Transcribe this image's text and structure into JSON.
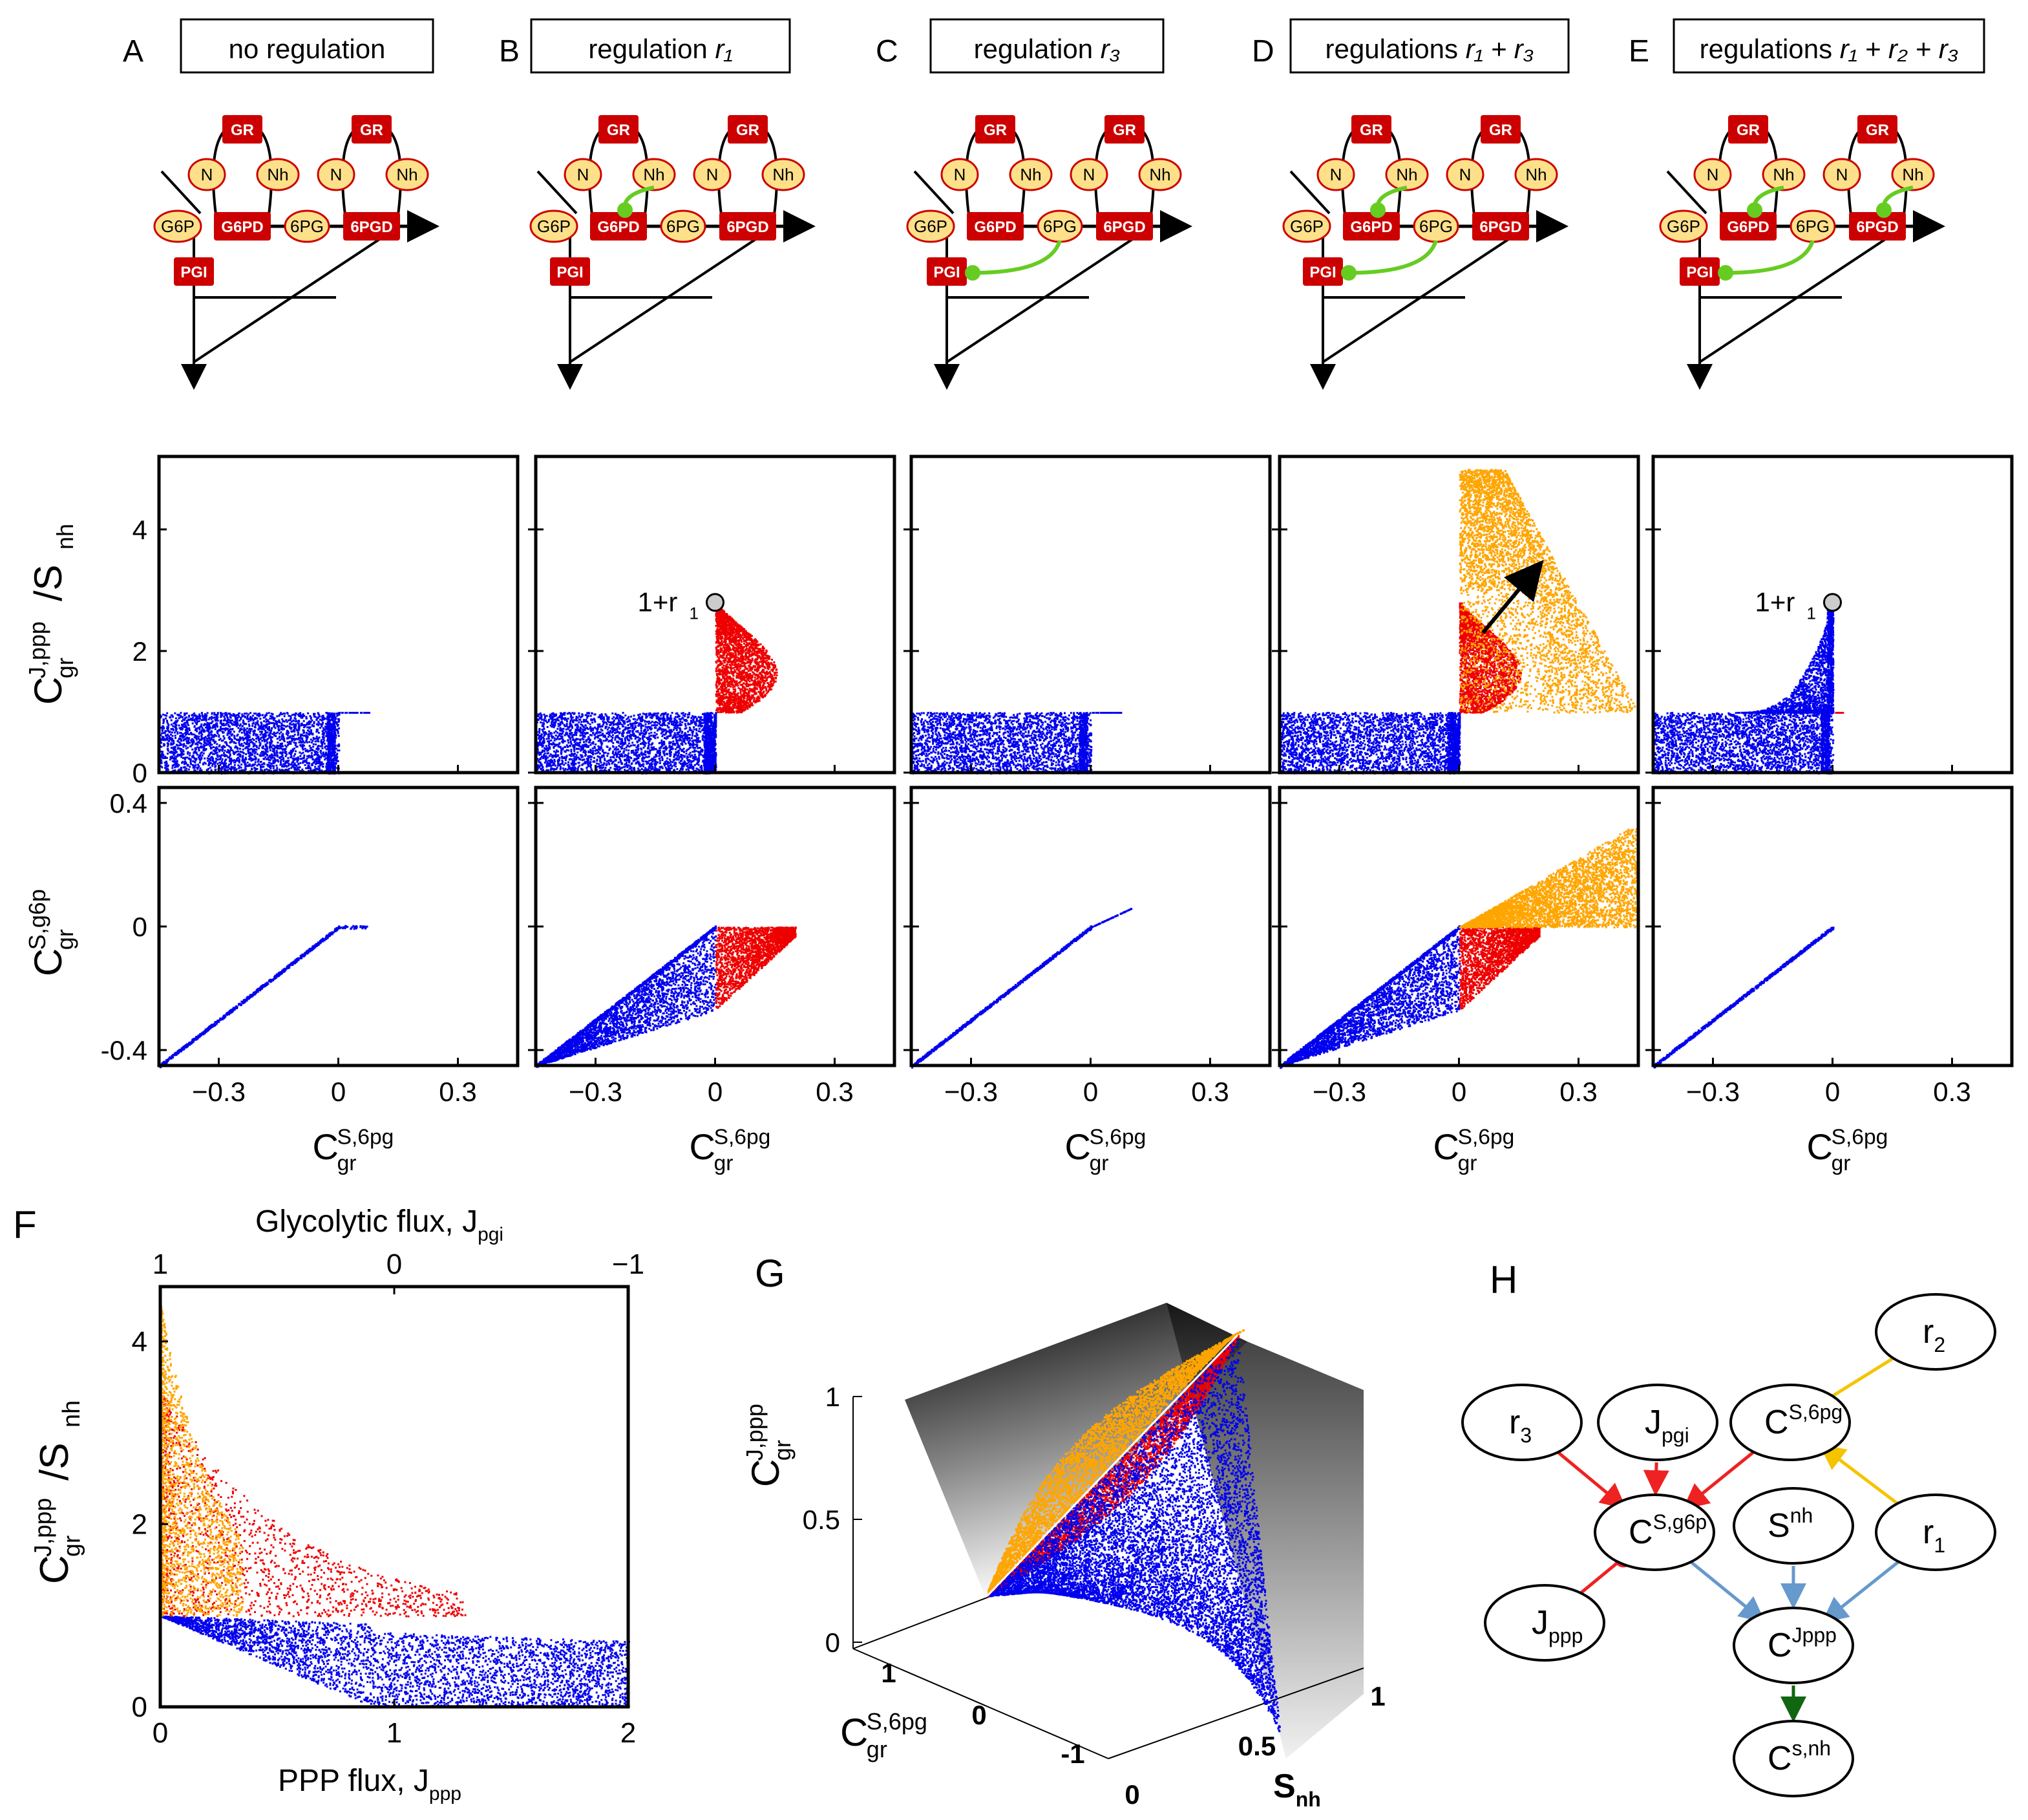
{
  "colors": {
    "no_regulation": "#0000ee",
    "r1_regulation": "#ee0000",
    "r3_regulation": "#ffa500",
    "enzyme": "#cc0000",
    "metabolite_fill": "#ffe08a",
    "regulation_arrow": "#66cc22",
    "graph_red": "#ee2222",
    "graph_blue": "#6699cc",
    "graph_yellow": "#f5c400",
    "graph_green": "#116611"
  },
  "panels_top": [
    {
      "letter": "A",
      "title": "no regulation",
      "sub": "",
      "reg": []
    },
    {
      "letter": "B",
      "title": "regulation ",
      "sub": "r₁",
      "reg": [
        "r1"
      ]
    },
    {
      "letter": "C",
      "title": "regulation ",
      "sub": "r₃",
      "reg": [
        "r3"
      ]
    },
    {
      "letter": "D",
      "title": "regulations ",
      "sub": "r₁ + r₃",
      "reg": [
        "r1",
        "r3"
      ]
    },
    {
      "letter": "E",
      "title": "regulations ",
      "sub": "r₁ + r₂ + r₃",
      "reg": [
        "r1",
        "r2",
        "r3"
      ]
    }
  ],
  "pathway": {
    "GR": "GR",
    "N": "N",
    "Nh": "Nh",
    "G6P": "G6P",
    "G6PD": "G6PD",
    "6PG": "6PG",
    "6PGD": "6PGD",
    "PGI": "PGI"
  },
  "scatter_labels": {
    "row1_y_base": "C",
    "row1_y_sup": "J,ppp",
    "row1_y_sub": "gr",
    "row1_y_rest": "/S",
    "row1_y_rest_sub": "nh",
    "row2_y_base": "C",
    "row2_y_sup": "S,g6p",
    "row2_y_sub": "gr",
    "x_base": "C",
    "x_sup": "S,6pg",
    "x_sub": "gr",
    "annot_1r1": "1+r",
    "annot_1r1_sub": "1"
  },
  "scatter_ticks": {
    "row1_y": [
      "0",
      "2",
      "4"
    ],
    "row2_y": [
      "-0.4",
      "0",
      "0.4"
    ],
    "x": [
      "−0.3",
      "0",
      "0.3"
    ]
  },
  "panelF": {
    "letter": "F",
    "top_label": "Glycolytic flux, J",
    "top_label_sub": "pgi",
    "bottom_label": "PPP flux, J",
    "bottom_label_sub": "ppp",
    "y_base": "C",
    "y_sup": "J,ppp",
    "y_sub": "gr",
    "y_rest": "/S",
    "y_rest_sub": "nh",
    "x_ticks": [
      "0",
      "1",
      "2"
    ],
    "top_ticks": [
      "1",
      "0",
      "−1"
    ],
    "y_ticks": [
      "0",
      "2",
      "4"
    ]
  },
  "panelG": {
    "letter": "G",
    "z_base": "C",
    "z_sup": "J,ppp",
    "z_sub": "gr",
    "x_base": "C",
    "x_sup": "S,6pg",
    "x_sub": "gr",
    "s_label": "S",
    "s_label_sub": "nh",
    "z_ticks": [
      "0",
      "0.5",
      "1"
    ],
    "x_ticks": [
      "1",
      "0",
      "-1"
    ],
    "s_ticks": [
      "0",
      "0.5",
      "1"
    ]
  },
  "panelH": {
    "letter": "H",
    "nodes": {
      "r2": {
        "base": "r",
        "sub": "2",
        "sup": ""
      },
      "r3": {
        "base": "r",
        "sub": "3",
        "sup": ""
      },
      "jpgi": {
        "base": "J",
        "sub": "pgi",
        "sup": ""
      },
      "cs6pg": {
        "base": "C",
        "sub": "",
        "sup": "S,6pg"
      },
      "csg6p": {
        "base": "C",
        "sub": "",
        "sup": "S,g6p"
      },
      "snh": {
        "base": "S",
        "sub": "",
        "sup": "nh"
      },
      "r1": {
        "base": "r",
        "sub": "1",
        "sup": ""
      },
      "jppp": {
        "base": "J",
        "sub": "ppp",
        "sup": ""
      },
      "cjppp": {
        "base": "C",
        "sub": "",
        "sup": "Jppp"
      },
      "csnh": {
        "base": "C",
        "sub": "",
        "sup": "s,nh"
      }
    }
  },
  "chart_data": [
    {
      "type": "scatter",
      "panels": [
        "A",
        "B",
        "C",
        "D",
        "E"
      ],
      "row": "top",
      "ylim": [
        0,
        5
      ],
      "xlim": [
        -0.45,
        0.45
      ],
      "series_colors": [
        "blue",
        "red",
        "orange"
      ],
      "peak_annotation": {
        "label": "1+r1",
        "x": 0.0,
        "y": 2.8
      }
    },
    {
      "type": "scatter",
      "panels": [
        "A",
        "B",
        "C",
        "D",
        "E"
      ],
      "row": "bottom",
      "ylim": [
        -0.45,
        0.45
      ],
      "xlim": [
        -0.45,
        0.45
      ]
    },
    {
      "type": "scatter",
      "panel": "F",
      "xlim": [
        0,
        2
      ],
      "ylim": [
        0,
        4.6
      ],
      "top_xlim": [
        1,
        -1
      ]
    },
    {
      "type": "scatter",
      "panel": "G",
      "zlim": [
        0,
        1
      ],
      "xlim": [
        -1,
        1
      ],
      "slim": [
        0,
        1
      ]
    }
  ]
}
